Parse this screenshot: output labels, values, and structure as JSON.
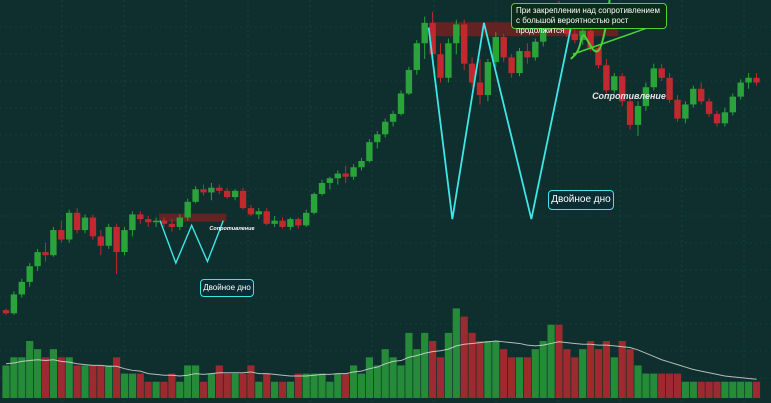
{
  "chart_data": {
    "type": "candlestick",
    "candles": [
      [
        0.5,
        0.6,
        0.2,
        0.3,
        "r"
      ],
      [
        0.3,
        1.7,
        0.2,
        1.5,
        "g"
      ],
      [
        1.5,
        2.5,
        1.3,
        2.3,
        "g"
      ],
      [
        2.3,
        3.5,
        2.0,
        3.3,
        "g"
      ],
      [
        3.3,
        4.4,
        3.0,
        4.2,
        "g"
      ],
      [
        4.2,
        4.8,
        3.6,
        4.0,
        "r"
      ],
      [
        4.0,
        5.8,
        3.9,
        5.6,
        "g"
      ],
      [
        5.6,
        6.2,
        4.8,
        5.0,
        "r"
      ],
      [
        5.0,
        6.9,
        4.8,
        6.7,
        "g"
      ],
      [
        6.7,
        7.0,
        5.4,
        5.6,
        "r"
      ],
      [
        5.6,
        6.6,
        5.4,
        6.4,
        "g"
      ],
      [
        6.4,
        6.6,
        5.0,
        5.2,
        "r"
      ],
      [
        5.2,
        5.6,
        4.0,
        4.6,
        "r"
      ],
      [
        4.6,
        6.0,
        4.4,
        5.8,
        "g"
      ],
      [
        5.8,
        6.0,
        2.8,
        4.2,
        "r"
      ],
      [
        4.2,
        5.8,
        4.0,
        5.6,
        "g"
      ],
      [
        5.6,
        6.8,
        5.2,
        6.6,
        "g"
      ],
      [
        6.6,
        6.8,
        6.0,
        6.3,
        "r"
      ],
      [
        6.3,
        6.5,
        5.8,
        6.1,
        "r"
      ],
      [
        6.1,
        6.4,
        5.8,
        6.2,
        "g"
      ],
      [
        6.2,
        6.4,
        5.8,
        6.0,
        "r"
      ],
      [
        6.0,
        6.3,
        5.5,
        5.8,
        "r"
      ],
      [
        5.8,
        6.6,
        5.6,
        6.4,
        "g"
      ],
      [
        6.4,
        7.6,
        6.2,
        7.4,
        "g"
      ],
      [
        7.4,
        8.4,
        7.3,
        8.2,
        "g"
      ],
      [
        8.2,
        8.5,
        7.8,
        8.0,
        "r"
      ],
      [
        8.0,
        8.6,
        7.5,
        8.3,
        "g"
      ],
      [
        8.3,
        8.5,
        7.9,
        8.1,
        "r"
      ],
      [
        8.1,
        8.3,
        7.6,
        7.7,
        "r"
      ],
      [
        7.7,
        8.2,
        7.5,
        8.1,
        "g"
      ],
      [
        8.1,
        8.3,
        6.9,
        7.0,
        "r"
      ],
      [
        7.0,
        7.2,
        6.5,
        6.6,
        "r"
      ],
      [
        6.6,
        7.0,
        6.3,
        6.8,
        "g"
      ],
      [
        6.8,
        7.0,
        5.9,
        6.0,
        "r"
      ],
      [
        6.0,
        6.5,
        5.8,
        6.2,
        "g"
      ],
      [
        6.2,
        6.4,
        5.7,
        5.8,
        "r"
      ],
      [
        5.8,
        6.4,
        5.6,
        6.3,
        "g"
      ],
      [
        6.3,
        6.4,
        5.7,
        5.9,
        "r"
      ],
      [
        5.9,
        6.9,
        5.8,
        6.7,
        "g"
      ],
      [
        6.7,
        8.0,
        6.6,
        7.9,
        "g"
      ],
      [
        7.9,
        8.8,
        7.8,
        8.6,
        "g"
      ],
      [
        8.6,
        9.0,
        8.2,
        8.9,
        "g"
      ],
      [
        8.9,
        9.4,
        8.5,
        9.2,
        "g"
      ],
      [
        9.2,
        9.7,
        8.6,
        9.0,
        "r"
      ],
      [
        9.0,
        9.8,
        8.8,
        9.6,
        "g"
      ],
      [
        9.6,
        10.2,
        9.4,
        10.0,
        "g"
      ],
      [
        10.0,
        11.4,
        9.9,
        11.2,
        "g"
      ],
      [
        11.2,
        11.9,
        10.8,
        11.7,
        "g"
      ],
      [
        11.7,
        12.7,
        11.5,
        12.5,
        "g"
      ],
      [
        12.5,
        13.2,
        12.2,
        13.0,
        "g"
      ],
      [
        13.0,
        14.5,
        12.9,
        14.3,
        "g"
      ],
      [
        14.3,
        16.0,
        14.2,
        15.8,
        "g"
      ],
      [
        15.8,
        17.7,
        15.5,
        17.5,
        "g"
      ],
      [
        17.5,
        19.2,
        16.5,
        18.8,
        "g"
      ],
      [
        18.8,
        19.5,
        16.5,
        16.8,
        "r"
      ],
      [
        16.8,
        17.5,
        15.0,
        15.3,
        "r"
      ],
      [
        15.3,
        17.8,
        15.0,
        17.5,
        "g"
      ],
      [
        17.5,
        19.0,
        16.8,
        18.7,
        "g"
      ],
      [
        18.7,
        19.0,
        15.8,
        16.2,
        "r"
      ],
      [
        16.2,
        16.6,
        14.7,
        15.0,
        "r"
      ],
      [
        15.0,
        16.5,
        13.6,
        14.2,
        "r"
      ],
      [
        14.2,
        16.5,
        13.8,
        16.3,
        "g"
      ],
      [
        16.3,
        18.2,
        16.0,
        17.9,
        "g"
      ],
      [
        17.9,
        18.1,
        16.3,
        16.6,
        "r"
      ],
      [
        16.6,
        16.8,
        15.3,
        15.6,
        "r"
      ],
      [
        15.6,
        17.2,
        15.4,
        17.0,
        "g"
      ],
      [
        17.0,
        17.5,
        16.2,
        16.6,
        "r"
      ],
      [
        16.6,
        17.8,
        16.4,
        17.6,
        "g"
      ],
      [
        17.6,
        18.6,
        17.3,
        18.4,
        "g"
      ],
      [
        18.4,
        20.0,
        18.2,
        19.8,
        "g"
      ],
      [
        19.8,
        20.2,
        18.8,
        19.0,
        "r"
      ],
      [
        19.0,
        19.3,
        17.9,
        18.1,
        "r"
      ],
      [
        18.1,
        18.8,
        17.5,
        17.7,
        "r"
      ],
      [
        17.7,
        18.5,
        17.4,
        18.3,
        "g"
      ],
      [
        18.3,
        18.6,
        17.0,
        17.2,
        "r"
      ],
      [
        17.2,
        17.4,
        15.9,
        16.1,
        "r"
      ],
      [
        16.1,
        16.5,
        14.3,
        14.5,
        "r"
      ],
      [
        14.5,
        15.6,
        14.3,
        15.4,
        "g"
      ],
      [
        15.4,
        15.6,
        13.5,
        13.8,
        "r"
      ],
      [
        13.8,
        14.0,
        12.0,
        12.3,
        "r"
      ],
      [
        12.3,
        13.8,
        11.6,
        13.5,
        "g"
      ],
      [
        13.5,
        15.0,
        13.2,
        14.7,
        "g"
      ],
      [
        14.7,
        16.2,
        14.5,
        15.9,
        "g"
      ],
      [
        15.9,
        16.2,
        15.1,
        15.3,
        "r"
      ],
      [
        15.3,
        15.6,
        13.7,
        13.9,
        "r"
      ],
      [
        13.9,
        14.2,
        12.5,
        12.7,
        "r"
      ],
      [
        12.7,
        13.8,
        12.4,
        13.6,
        "g"
      ],
      [
        13.6,
        14.8,
        13.4,
        14.6,
        "g"
      ],
      [
        14.6,
        15.0,
        13.6,
        13.8,
        "r"
      ],
      [
        13.8,
        14.0,
        12.8,
        13.0,
        "r"
      ],
      [
        13.0,
        13.2,
        12.2,
        12.4,
        "r"
      ],
      [
        12.4,
        13.4,
        12.2,
        13.1,
        "g"
      ],
      [
        13.1,
        14.3,
        12.9,
        14.1,
        "g"
      ],
      [
        14.1,
        15.2,
        13.9,
        15.0,
        "g"
      ],
      [
        15.0,
        15.6,
        14.6,
        15.3,
        "g"
      ],
      [
        15.3,
        15.6,
        14.8,
        15.0,
        "r"
      ]
    ],
    "volumes": [
      [
        4,
        "g"
      ],
      [
        5,
        "g"
      ],
      [
        5,
        "g"
      ],
      [
        7,
        "g"
      ],
      [
        6,
        "g"
      ],
      [
        5,
        "r"
      ],
      [
        6,
        "g"
      ],
      [
        5,
        "r"
      ],
      [
        5,
        "g"
      ],
      [
        4,
        "r"
      ],
      [
        4,
        "g"
      ],
      [
        4,
        "r"
      ],
      [
        4,
        "r"
      ],
      [
        4,
        "g"
      ],
      [
        5,
        "r"
      ],
      [
        3,
        "g"
      ],
      [
        3,
        "g"
      ],
      [
        3,
        "r"
      ],
      [
        2,
        "r"
      ],
      [
        2,
        "g"
      ],
      [
        2,
        "r"
      ],
      [
        3,
        "r"
      ],
      [
        2,
        "g"
      ],
      [
        4,
        "g"
      ],
      [
        4,
        "g"
      ],
      [
        2,
        "r"
      ],
      [
        3,
        "g"
      ],
      [
        4,
        "r"
      ],
      [
        3,
        "r"
      ],
      [
        3,
        "g"
      ],
      [
        3,
        "r"
      ],
      [
        4,
        "r"
      ],
      [
        2,
        "g"
      ],
      [
        3,
        "r"
      ],
      [
        2,
        "g"
      ],
      [
        2,
        "r"
      ],
      [
        2,
        "g"
      ],
      [
        3,
        "r"
      ],
      [
        3,
        "g"
      ],
      [
        3,
        "g"
      ],
      [
        3,
        "g"
      ],
      [
        2,
        "g"
      ],
      [
        3,
        "g"
      ],
      [
        3,
        "r"
      ],
      [
        4,
        "g"
      ],
      [
        3,
        "g"
      ],
      [
        5,
        "g"
      ],
      [
        4,
        "g"
      ],
      [
        6,
        "g"
      ],
      [
        5,
        "g"
      ],
      [
        4,
        "g"
      ],
      [
        8,
        "g"
      ],
      [
        6,
        "g"
      ],
      [
        8,
        "g"
      ],
      [
        7,
        "r"
      ],
      [
        5,
        "r"
      ],
      [
        8,
        "g"
      ],
      [
        11,
        "g"
      ],
      [
        10,
        "r"
      ],
      [
        8,
        "r"
      ],
      [
        7,
        "r"
      ],
      [
        7,
        "g"
      ],
      [
        7,
        "g"
      ],
      [
        6,
        "r"
      ],
      [
        5,
        "r"
      ],
      [
        5,
        "g"
      ],
      [
        5,
        "r"
      ],
      [
        6,
        "g"
      ],
      [
        7,
        "g"
      ],
      [
        9,
        "g"
      ],
      [
        9,
        "r"
      ],
      [
        6,
        "r"
      ],
      [
        5,
        "r"
      ],
      [
        6,
        "g"
      ],
      [
        7,
        "r"
      ],
      [
        6,
        "r"
      ],
      [
        7,
        "r"
      ],
      [
        5,
        "g"
      ],
      [
        7,
        "r"
      ],
      [
        6,
        "r"
      ],
      [
        4,
        "g"
      ],
      [
        3,
        "g"
      ],
      [
        3,
        "g"
      ],
      [
        3,
        "r"
      ],
      [
        3,
        "r"
      ],
      [
        3,
        "r"
      ],
      [
        2,
        "g"
      ],
      [
        2,
        "g"
      ],
      [
        2,
        "r"
      ],
      [
        2,
        "r"
      ],
      [
        2,
        "r"
      ],
      [
        2,
        "g"
      ],
      [
        2,
        "g"
      ],
      [
        2,
        "g"
      ],
      [
        2,
        "g"
      ],
      [
        2,
        "r"
      ]
    ],
    "volume_ma": [
      4.2,
      4.3,
      4.5,
      4.6,
      4.7,
      4.6,
      4.7,
      4.5,
      4.4,
      4.2,
      4.1,
      4.0,
      4.0,
      3.9,
      3.9,
      3.6,
      3.4,
      3.3,
      3.0,
      2.9,
      2.8,
      2.8,
      2.7,
      2.8,
      3.0,
      2.9,
      3.0,
      3.1,
      3.1,
      3.1,
      3.1,
      3.2,
      3.0,
      3.0,
      2.9,
      2.8,
      2.7,
      2.7,
      2.7,
      2.8,
      2.9,
      2.9,
      3.0,
      3.0,
      3.2,
      3.3,
      3.6,
      3.8,
      4.2,
      4.5,
      4.6,
      5.0,
      5.2,
      5.5,
      5.7,
      5.8,
      6.0,
      6.4,
      6.6,
      6.7,
      6.8,
      6.9,
      7.0,
      6.9,
      6.8,
      6.7,
      6.5,
      6.4,
      6.5,
      6.7,
      6.9,
      6.8,
      6.7,
      6.6,
      6.6,
      6.5,
      6.5,
      6.4,
      6.3,
      6.2,
      5.9,
      5.5,
      5.1,
      4.7,
      4.4,
      4.1,
      3.8,
      3.5,
      3.3,
      3.1,
      2.9,
      2.7,
      2.6,
      2.5,
      2.4,
      2.3
    ],
    "price_range": [
      0,
      20
    ],
    "volume_range": [
      0,
      14
    ],
    "colors": {
      "up": "#2aa33b",
      "down": "#c1292e",
      "background": "#0f2e2e",
      "grid": "#1f4848",
      "pattern": "#3ee6e6",
      "arrow": "#4cd137",
      "resistance": "#6e2222",
      "volume_ma": "#e0e0e0"
    },
    "patterns": [
      {
        "label": "Двойное дно",
        "resistance_label": "Сопротивление",
        "points": [
          [
            19.5,
            6.2
          ],
          [
            21.5,
            3.5
          ],
          [
            23.5,
            5.9
          ],
          [
            25.5,
            3.6
          ],
          [
            27.5,
            6.2
          ]
        ],
        "resistance_level": 6.2
      },
      {
        "label": "Двойное дно",
        "resistance_label": "Сопротивление",
        "points": [
          [
            53.5,
            18.5
          ],
          [
            56.5,
            6.3
          ],
          [
            60.5,
            18.8
          ],
          [
            66.5,
            6.3
          ],
          [
            71.5,
            18.5
          ]
        ],
        "resistance_level": 18.2
      }
    ],
    "projection": [
      [
        71.5,
        16.5
      ],
      [
        72.5,
        17.0
      ],
      [
        73.0,
        18.2
      ],
      [
        73.7,
        17.6
      ],
      [
        74.5,
        16.9
      ],
      [
        75.3,
        17.1
      ],
      [
        76.2,
        19.2
      ],
      [
        76.8,
        22.2
      ]
    ],
    "annotation": "При закреплении над сопротивлением с большой вероятностью рост продолжится"
  }
}
